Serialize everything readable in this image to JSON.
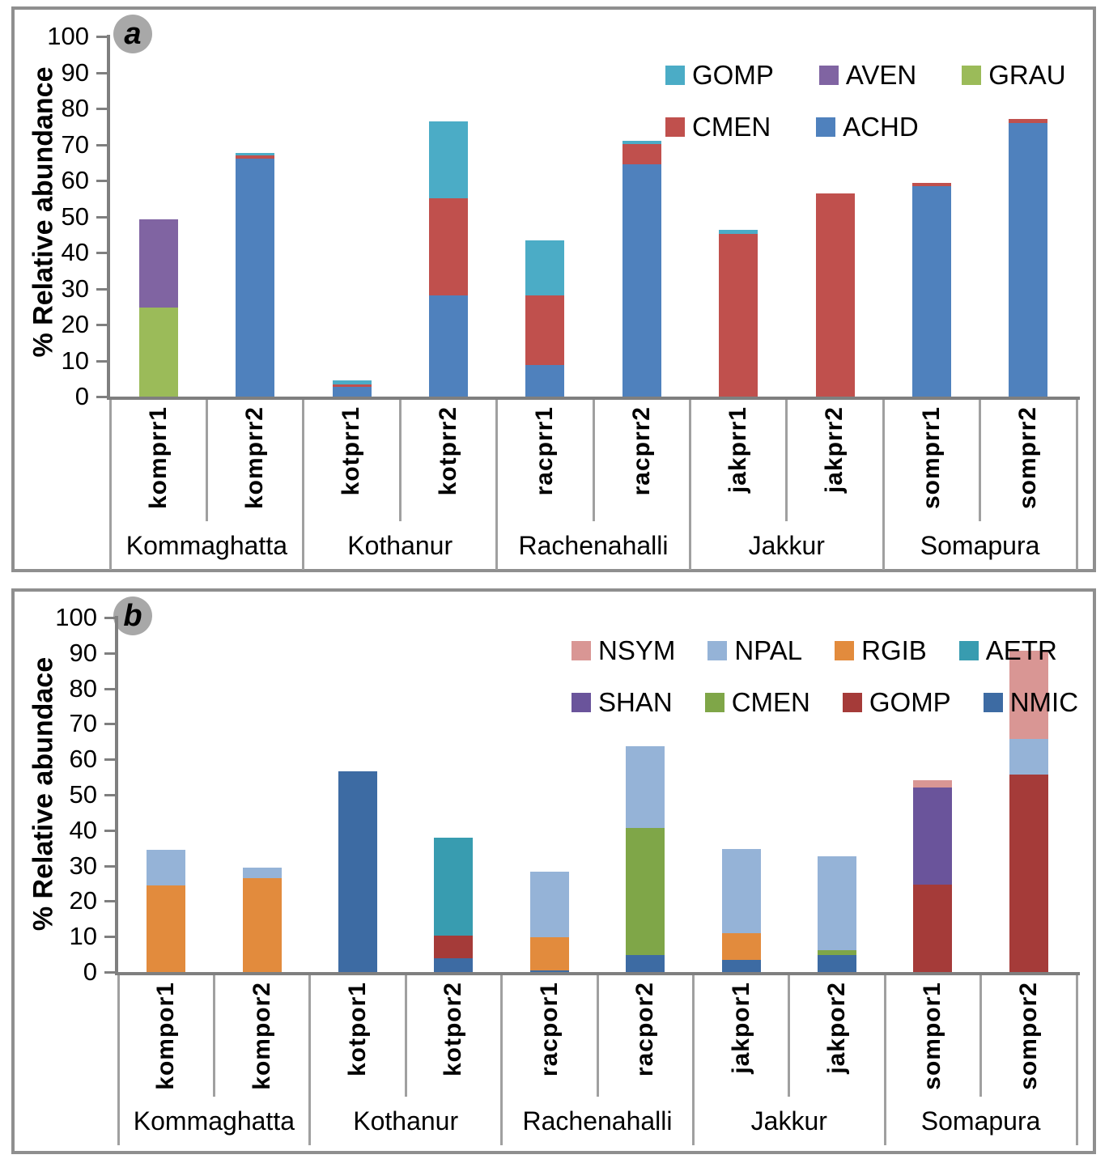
{
  "figure": {
    "background": "#ffffff",
    "panel_border_color": "#8f8f8f",
    "axis_color": "#7f7f7f",
    "divider_color": "#a0a0a0",
    "badge_background": "#a8a8a8"
  },
  "chart_data": [
    {
      "type": "bar",
      "stacked": true,
      "badge": "a",
      "title": "",
      "xlabel": "",
      "ylabel": "% Relative abundance",
      "ylim": [
        0,
        100
      ],
      "yticks": [
        0,
        10,
        20,
        30,
        40,
        50,
        60,
        70,
        80,
        90,
        100
      ],
      "grid": false,
      "legend_position": "top-right",
      "legend_rows": [
        [
          "GOMP",
          "AVEN",
          "GRAU"
        ],
        [
          "CMEN",
          "ACHD"
        ]
      ],
      "categories": [
        "komprr1",
        "komprr2",
        "kotprr1",
        "kotprr2",
        "racprr1",
        "racprr2",
        "jakprr1",
        "jakprr2",
        "somprr1",
        "somprr2"
      ],
      "groups": [
        {
          "label": "Kommaghatta",
          "span": 2
        },
        {
          "label": "Kothanur",
          "span": 2
        },
        {
          "label": "Rachenahalli",
          "span": 2
        },
        {
          "label": "Jakkur",
          "span": 2
        },
        {
          "label": "Somapura",
          "span": 2
        }
      ],
      "series": [
        {
          "name": "ACHD",
          "color": "#4f81bd",
          "values": [
            0,
            66.0,
            2.8,
            28.0,
            8.8,
            64.6,
            0,
            0,
            58.4,
            76.0
          ]
        },
        {
          "name": "CMEN",
          "color": "#c0504d",
          "values": [
            0,
            1.0,
            0.6,
            27.0,
            19.3,
            5.5,
            45.2,
            56.5,
            0.9,
            1.0
          ]
        },
        {
          "name": "GRAU",
          "color": "#9bbb59",
          "values": [
            24.7,
            0,
            0,
            0,
            0,
            0,
            0,
            0,
            0,
            0
          ]
        },
        {
          "name": "AVEN",
          "color": "#8064a2",
          "values": [
            24.6,
            0,
            0,
            0,
            0,
            0,
            0,
            0,
            0,
            0
          ]
        },
        {
          "name": "GOMP",
          "color": "#4bacc6",
          "values": [
            0,
            0.6,
            1.0,
            21.5,
            15.2,
            1.0,
            1.0,
            0,
            0,
            0
          ]
        }
      ]
    },
    {
      "type": "bar",
      "stacked": true,
      "badge": "b",
      "title": "",
      "xlabel": "",
      "ylabel": "% Relative abundace",
      "ylim": [
        0,
        100
      ],
      "yticks": [
        0,
        10,
        20,
        30,
        40,
        50,
        60,
        70,
        80,
        90,
        100
      ],
      "grid": false,
      "legend_position": "top-right",
      "legend_rows": [
        [
          "NSYM",
          "NPAL",
          "RGIB",
          "AETR"
        ],
        [
          "SHAN",
          "CMEN",
          "GOMP",
          "NMIC"
        ]
      ],
      "categories": [
        "kompor1",
        "kompor2",
        "kotpor1",
        "kotpor2",
        "racpor1",
        "racpor2",
        "jakpor1",
        "jakpor2",
        "sompor1",
        "sompor2"
      ],
      "groups": [
        {
          "label": "Kommaghatta",
          "span": 2
        },
        {
          "label": "Kothanur",
          "span": 2
        },
        {
          "label": "Rachenahalli",
          "span": 2
        },
        {
          "label": "Jakkur",
          "span": 2
        },
        {
          "label": "Somapura",
          "span": 2
        }
      ],
      "series": [
        {
          "name": "NMIC",
          "color": "#3d6ba3",
          "values": [
            0,
            0,
            56.7,
            3.8,
            0.5,
            4.7,
            3.4,
            4.7,
            0,
            0
          ]
        },
        {
          "name": "GOMP",
          "color": "#a53b39",
          "values": [
            0,
            0,
            0,
            6.4,
            0,
            0,
            0,
            0,
            24.6,
            55.7
          ]
        },
        {
          "name": "CMEN",
          "color": "#7fa648",
          "values": [
            0,
            0,
            0,
            0,
            0,
            35.9,
            0,
            1.5,
            0,
            0
          ]
        },
        {
          "name": "SHAN",
          "color": "#6a549b",
          "values": [
            0,
            0,
            0,
            0,
            0,
            0,
            0,
            0,
            27.5,
            0
          ]
        },
        {
          "name": "AETR",
          "color": "#389cb0",
          "values": [
            0,
            0,
            0,
            27.8,
            0,
            0,
            0,
            0,
            0,
            0
          ]
        },
        {
          "name": "RGIB",
          "color": "#e28b3d",
          "values": [
            24.4,
            26.4,
            0,
            0,
            9.3,
            0,
            7.6,
            0,
            0,
            0
          ]
        },
        {
          "name": "NPAL",
          "color": "#95b3d7",
          "values": [
            10.1,
            3.0,
            0,
            0,
            18.6,
            23.1,
            23.7,
            26.4,
            0,
            10.1
          ]
        },
        {
          "name": "NSYM",
          "color": "#d99694",
          "values": [
            0,
            0,
            0,
            0,
            0,
            0,
            0,
            0,
            1.9,
            24.9
          ]
        }
      ]
    }
  ]
}
